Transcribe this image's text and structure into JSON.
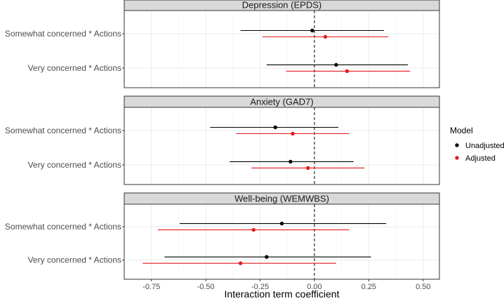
{
  "chart_data": {
    "type": "forest",
    "xlabel": "Interaction term coefficient",
    "xlim": [
      -0.875,
      0.575
    ],
    "xticks": [
      -0.75,
      -0.5,
      -0.25,
      0.0,
      0.25,
      0.5
    ],
    "xtick_labels": [
      "-0.75",
      "-0.50",
      "-0.25",
      "0.00",
      "0.25",
      "0.50"
    ],
    "reference_line": 0,
    "categories": [
      "Somewhat concerned * Actions",
      "Very concerned * Actions"
    ],
    "legend": {
      "title": "Model",
      "entries": [
        {
          "name": "Unadjusted",
          "color": "#000000"
        },
        {
          "name": "Adjusted",
          "color": "#e31a1c"
        }
      ]
    },
    "panels": [
      {
        "title": "Depression (EPDS)",
        "series": [
          {
            "name": "Unadjusted",
            "color": "#000000",
            "estimates": [
              -0.01,
              0.1
            ],
            "lower": [
              -0.34,
              -0.22
            ],
            "upper": [
              0.32,
              0.43
            ]
          },
          {
            "name": "Adjusted",
            "color": "#e31a1c",
            "estimates": [
              0.05,
              0.15
            ],
            "lower": [
              -0.24,
              -0.13
            ],
            "upper": [
              0.34,
              0.44
            ]
          }
        ]
      },
      {
        "title": "Anxiety (GAD7)",
        "series": [
          {
            "name": "Unadjusted",
            "color": "#000000",
            "estimates": [
              -0.18,
              -0.11
            ],
            "lower": [
              -0.48,
              -0.39
            ],
            "upper": [
              0.11,
              0.18
            ]
          },
          {
            "name": "Adjusted",
            "color": "#e31a1c",
            "estimates": [
              -0.1,
              -0.03
            ],
            "lower": [
              -0.36,
              -0.29
            ],
            "upper": [
              0.16,
              0.23
            ]
          }
        ]
      },
      {
        "title": "Well-being (WEMWBS)",
        "series": [
          {
            "name": "Unadjusted",
            "color": "#000000",
            "estimates": [
              -0.15,
              -0.22
            ],
            "lower": [
              -0.62,
              -0.69
            ],
            "upper": [
              0.33,
              0.26
            ]
          },
          {
            "name": "Adjusted",
            "color": "#e31a1c",
            "estimates": [
              -0.28,
              -0.34
            ],
            "lower": [
              -0.72,
              -0.79
            ],
            "upper": [
              0.16,
              0.1
            ]
          }
        ]
      }
    ]
  }
}
